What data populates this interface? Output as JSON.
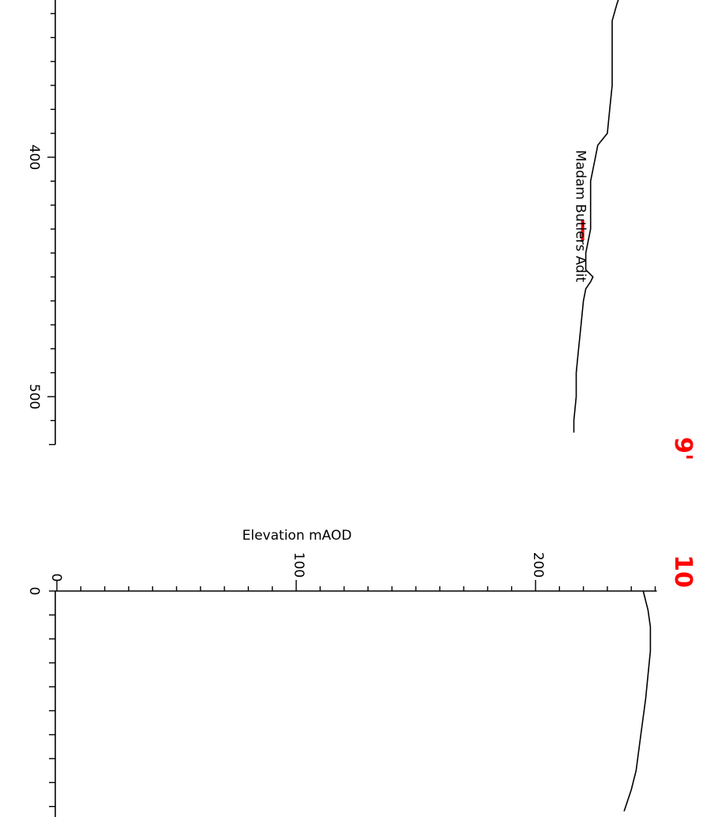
{
  "chart_data": [
    {
      "type": "line",
      "title": "",
      "xlabel": "",
      "ylabel": "",
      "distance_ticks": [
        "400",
        "500"
      ],
      "ylim": [
        325,
        520
      ],
      "series": [
        {
          "x": [
            330,
            336,
            343,
            350,
            360,
            370,
            380,
            390,
            395,
            400,
            410,
            420,
            430,
            440,
            447,
            450,
            452,
            455,
            460,
            470,
            480,
            490,
            500,
            510,
            515
          ],
          "y": [
            236,
            234,
            232,
            232,
            232,
            232,
            231,
            230,
            226,
            225,
            223,
            223,
            223,
            221,
            221,
            224,
            223,
            221,
            220,
            219,
            218,
            217,
            217,
            216,
            216
          ]
        }
      ],
      "annotations": [
        {
          "text": "Madam Butlers Adit",
          "x": 436,
          "y": 221,
          "marker_color": "#ff0000"
        }
      ]
    },
    {
      "type": "line",
      "title": "",
      "xlabel": "",
      "ylabel": "Elevation mAOD",
      "elevation_ticks": [
        "0",
        "100",
        "200"
      ],
      "distance_ticks": [
        "0"
      ],
      "xlim": [
        0,
        250
      ],
      "series": [
        {
          "x": [
            0,
            8,
            15,
            25,
            35,
            45,
            60,
            75,
            83,
            92
          ],
          "y": [
            245,
            247,
            248,
            248,
            247,
            246,
            244,
            242,
            240,
            237
          ]
        }
      ]
    }
  ],
  "page_marks": [
    "9'",
    "10"
  ]
}
